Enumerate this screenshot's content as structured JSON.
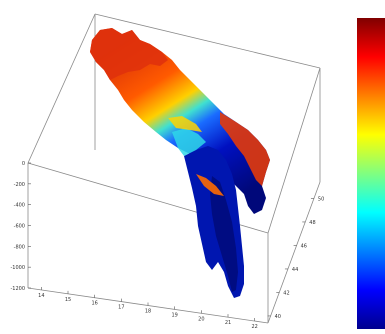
{
  "chart_data": {
    "type": "surface",
    "title": "",
    "xlabel": "",
    "ylabel": "",
    "zlabel": "",
    "zlim": [
      -1200,
      0
    ],
    "z_ticks": [
      "0",
      "-200",
      "-400",
      "-600",
      "-800",
      "-1000",
      "-1200"
    ],
    "x_ticks": [
      "14",
      "15",
      "16",
      "17",
      "18",
      "19",
      "20",
      "21",
      "22"
    ],
    "y_ticks": [
      "40",
      "42",
      "44",
      "46",
      "48",
      "50"
    ],
    "grid": false,
    "colormap": "jet",
    "colorbar": true,
    "colorbar_placement": "right",
    "colormap_stops": [
      "#00008f",
      "#0000ff",
      "#0080ff",
      "#00ffff",
      "#80ff80",
      "#ffff00",
      "#ff8000",
      "#ff0000",
      "#800000"
    ],
    "surface_description_colors": {
      "shallow": "#e53a0f",
      "deep": "#001a9a"
    }
  }
}
